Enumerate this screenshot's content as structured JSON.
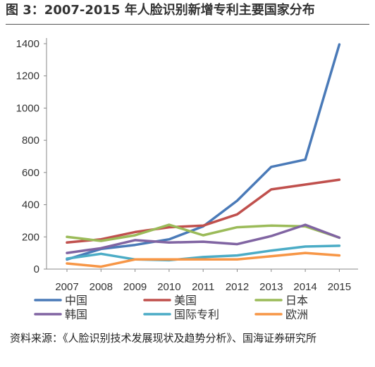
{
  "title": "图 3：2007-2015 年人脸识别新增专利主要国家分布",
  "source": "资料来源：《人脸识别技术发展现状及趋势分析》、国海证券研究所",
  "chart_data": {
    "type": "line",
    "title": "图 3：2007-2015 年人脸识别新增专利主要国家分布",
    "xlabel": "",
    "ylabel": "",
    "x": [
      2007,
      2008,
      2009,
      2010,
      2011,
      2012,
      2013,
      2014,
      2015
    ],
    "ylim": [
      0,
      1400
    ],
    "yticks": [
      0,
      200,
      400,
      600,
      800,
      1000,
      1200,
      1400
    ],
    "grid": false,
    "legend_position": "bottom",
    "series": [
      {
        "name": "中国",
        "color": "#4a7ab8",
        "values": [
          60,
          125,
          150,
          185,
          265,
          425,
          635,
          680,
          1395
        ]
      },
      {
        "name": "美国",
        "color": "#c0504d",
        "values": [
          165,
          185,
          230,
          260,
          270,
          340,
          495,
          525,
          555
        ]
      },
      {
        "name": "日本",
        "color": "#9bbb59",
        "values": [
          200,
          175,
          210,
          275,
          210,
          260,
          270,
          265,
          195
        ]
      },
      {
        "name": "韩国",
        "color": "#8064a2",
        "values": [
          100,
          130,
          180,
          165,
          170,
          155,
          205,
          275,
          195
        ]
      },
      {
        "name": "国际专利",
        "color": "#4bacc6",
        "values": [
          65,
          95,
          60,
          55,
          75,
          85,
          115,
          140,
          145
        ]
      },
      {
        "name": "欧洲",
        "color": "#f79646",
        "values": [
          35,
          15,
          60,
          60,
          60,
          60,
          80,
          100,
          85
        ]
      }
    ]
  }
}
